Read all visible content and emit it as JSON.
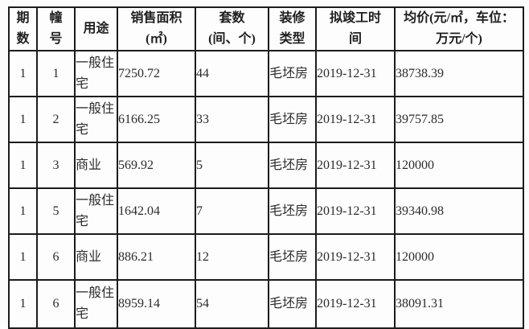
{
  "table": {
    "headers": [
      {
        "key": "period",
        "lines": [
          "期",
          "数"
        ]
      },
      {
        "key": "building",
        "lines": [
          "幢",
          "号"
        ]
      },
      {
        "key": "usage",
        "lines": [
          "用途"
        ]
      },
      {
        "key": "area",
        "lines": [
          "销售面积",
          "(㎡)"
        ]
      },
      {
        "key": "units",
        "lines": [
          "套数",
          "(间、个)"
        ]
      },
      {
        "key": "decoration",
        "lines": [
          "装修",
          "类型"
        ]
      },
      {
        "key": "completion",
        "lines": [
          "拟竣工时",
          "间"
        ]
      },
      {
        "key": "price",
        "lines": [
          "均价(元/㎡，车位：",
          "万元/个)"
        ]
      }
    ],
    "rows": [
      [
        "1",
        "1",
        "一般住宅",
        "7250.72",
        "44",
        "毛坯房",
        "2019-12-31",
        "38738.39"
      ],
      [
        "1",
        "2",
        "一般住宅",
        "6166.25",
        "33",
        "毛坯房",
        "2019-12-31",
        "39757.85"
      ],
      [
        "1",
        "3",
        "商业",
        "569.92",
        "5",
        "毛坯房",
        "2019-12-31",
        "120000"
      ],
      [
        "1",
        "5",
        "一般住宅",
        "1642.04",
        "7",
        "毛坯房",
        "2019-12-31",
        "39340.98"
      ],
      [
        "1",
        "6",
        "商业",
        "886.21",
        "12",
        "毛坯房",
        "2019-12-31",
        "120000"
      ],
      [
        "1",
        "6",
        "一般住宅",
        "8959.14",
        "54",
        "毛坯房",
        "2019-12-31",
        "38091.31"
      ]
    ]
  },
  "colors": {
    "border": "#1c1c1c",
    "text": "#2b2b2b",
    "background": "#fdfdfd"
  }
}
